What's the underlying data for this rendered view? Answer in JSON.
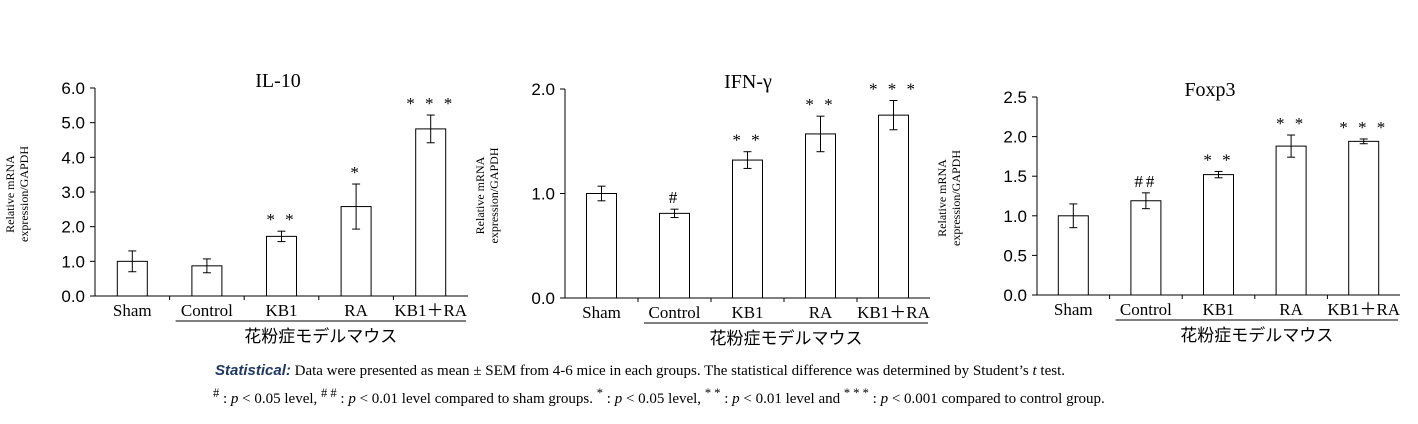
{
  "chart_data": [
    {
      "type": "bar",
      "title": "IL-10",
      "ylabel_line1": "Relative mRNA",
      "ylabel_line2": "expression/GAPDH",
      "ylim": [
        0,
        6
      ],
      "ticks": [
        "0.0",
        "1.0",
        "2.0",
        "3.0",
        "4.0",
        "5.0",
        "6.0"
      ],
      "categories": [
        "Sham",
        "Control",
        "KB1",
        "RA",
        "KB1＋RA"
      ],
      "values": [
        1.0,
        0.87,
        1.72,
        2.58,
        4.82
      ],
      "errors": [
        0.3,
        0.2,
        0.15,
        0.65,
        0.4
      ],
      "annotations": [
        "",
        "",
        "* *",
        "*",
        "* * *"
      ],
      "group_label": "花粉症モデルマウス"
    },
    {
      "type": "bar",
      "title": "IFN-γ",
      "ylabel_line1": "Relative mRNA",
      "ylabel_line2": "expression/GAPDH",
      "ylim": [
        0,
        2
      ],
      "ticks": [
        "0.0",
        "1.0",
        "2.0"
      ],
      "categories": [
        "Sham",
        "Control",
        "KB1",
        "RA",
        "KB1＋RA"
      ],
      "values": [
        1.0,
        0.81,
        1.32,
        1.57,
        1.75
      ],
      "errors": [
        0.07,
        0.04,
        0.08,
        0.17,
        0.14
      ],
      "annotations": [
        "",
        "#",
        "* *",
        "* *",
        "* * *"
      ],
      "group_label": "花粉症モデルマウス"
    },
    {
      "type": "bar",
      "title": "Foxp3",
      "ylabel_line1": "Relative mRNA",
      "ylabel_line2": "expression/GAPDH",
      "ylim": [
        0,
        2.5
      ],
      "ticks": [
        "0.0",
        "0.5",
        "1.0",
        "1.5",
        "2.0",
        "2.5"
      ],
      "categories": [
        "Sham",
        "Control",
        "KB1",
        "RA",
        "KB1＋RA"
      ],
      "values": [
        1.0,
        1.19,
        1.52,
        1.88,
        1.94
      ],
      "errors": [
        0.15,
        0.1,
        0.04,
        0.14,
        0.03
      ],
      "annotations": [
        "",
        "##",
        "* *",
        "* *",
        "* * *"
      ],
      "group_label": "花粉症モデルマウス"
    }
  ],
  "footnote": {
    "lead": "Statistical:",
    "line1_a": " Data were presented as mean ± SEM from 4-6 mice in each groups. The statistical difference was determined by Student’s ",
    "line1_t": "t",
    "line1_b": " test.",
    "line2_a": " : ",
    "p": "p",
    "line2_b": " < 0.05 level, ",
    "line2_c": " : ",
    "line2_d": " < 0.01 level compared to sham groups. ",
    "line2_e": " : ",
    "line2_f": " < 0.05 level, ",
    "line2_g": " : ",
    "line2_h": " < 0.01 level and ",
    "line2_i": " : ",
    "line2_j": " < 0.001 compared to control group.",
    "sym_hash": "#",
    "sym_hashhash": "# #",
    "sym_star": "*",
    "sym_starstar": "* *",
    "sym_starstarstar": "* * *"
  }
}
